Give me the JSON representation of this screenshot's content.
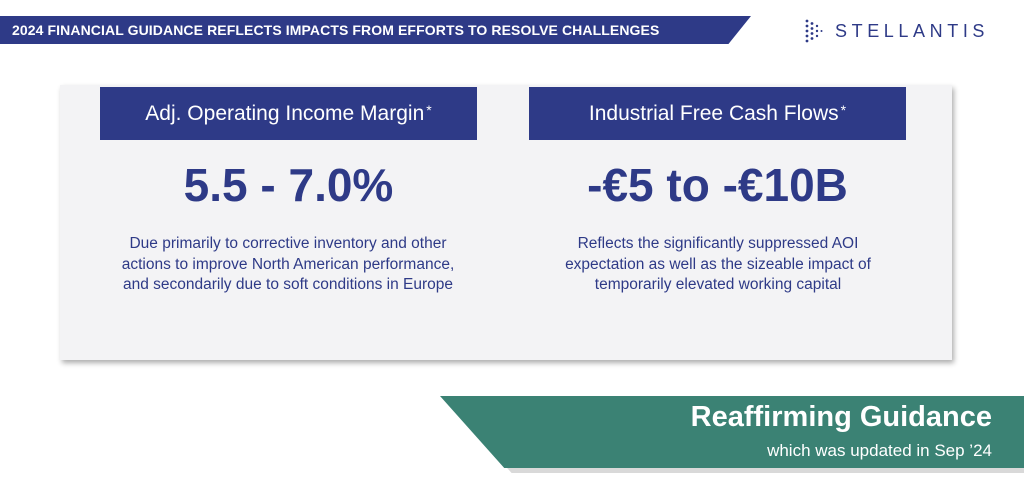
{
  "header": {
    "title": "2024 FINANCIAL GUIDANCE REFLECTS IMPACTS FROM EFFORTS TO RESOLVE CHALLENGES",
    "logo_text": "STELLANTIS",
    "bar_color": "#2e3a87"
  },
  "columns": [
    {
      "heading": "Adj. Operating Income Margin",
      "heading_mark": "*",
      "value": "5.5 - 7.0%",
      "description": [
        "Due primarily to corrective inventory and other",
        "actions to improve North American performance,",
        "and secondarily due to soft conditions in Europe"
      ]
    },
    {
      "heading": "Industrial Free Cash Flows",
      "heading_mark": "*",
      "value": "-€5 to -€10B",
      "description": [
        "Reflects the significantly suppressed AOI",
        "expectation as well as the sizeable impact of",
        "temporarily elevated working capital"
      ]
    }
  ],
  "banner": {
    "title": "Reaffirming Guidance",
    "subtitle": "which was updated in Sep ’24",
    "color": "#3b8274"
  }
}
